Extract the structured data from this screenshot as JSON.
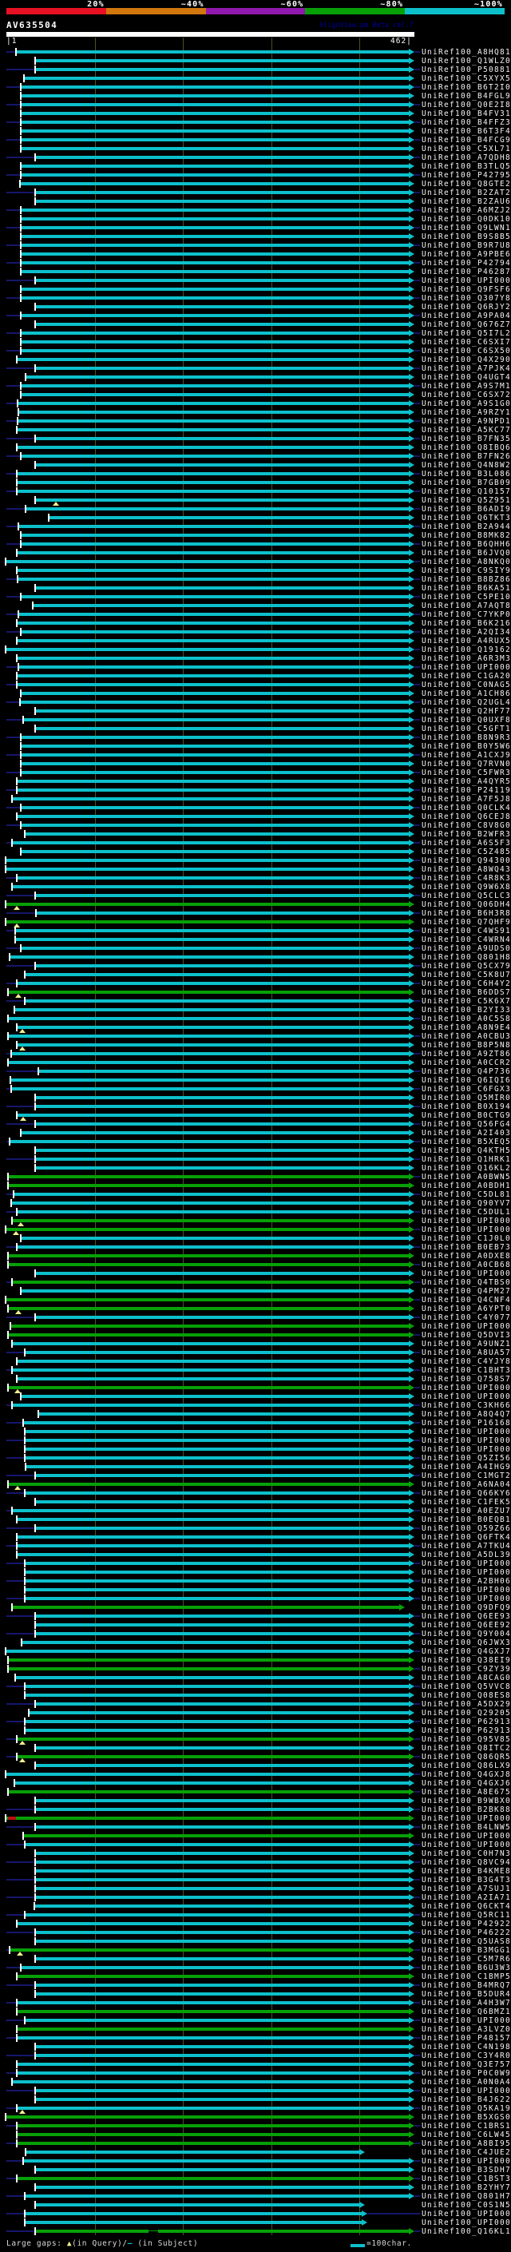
{
  "header": {
    "query_id": "AV635504",
    "app_title": "AlignView.pm Beta rel.7",
    "ruler": {
      "start_label": "|1",
      "end_label": "462|"
    },
    "scale": {
      "segments": [
        {
          "label": "20%",
          "color": "#e81123"
        },
        {
          "label": "~40%",
          "color": "#d1770e"
        },
        {
          "label": "~60%",
          "color": "#9119ad"
        },
        {
          "label": "~80%",
          "color": "#07a007"
        },
        {
          "label": "~100%",
          "color": "#0cc0cb"
        }
      ]
    }
  },
  "legend": {
    "prefix": "Large gaps:",
    "query_marker": "▲",
    "mid": "(in Query)/",
    "subject_marker": "–",
    "suffix": " (in Subject)",
    "scale_label": "=100char."
  },
  "colors": {
    "cyan_bar": "#0cc0cb",
    "green_bar": "#07a007",
    "navy_line": "#16166b",
    "gridline": "#50501e",
    "gap_marker": "#f2ee8d",
    "red_segment": "#bb1111"
  },
  "row_label_prefix": "UniRef100_",
  "rows": [
    {
      "id": "A8HQ81",
      "s": 21
    },
    {
      "id": "Q1WLZ0",
      "s": 45
    },
    {
      "id": "P50881",
      "s": 45
    },
    {
      "id": "C5XYX5",
      "s": 31
    },
    {
      "id": "B6T2I0",
      "s": 27
    },
    {
      "id": "B4FGL9",
      "s": 27
    },
    {
      "id": "Q0E2I8",
      "s": 27
    },
    {
      "id": "B4FV31",
      "s": 27
    },
    {
      "id": "B4FFZ3",
      "s": 27
    },
    {
      "id": "B6T3F4",
      "s": 27
    },
    {
      "id": "B4FCG9",
      "s": 27
    },
    {
      "id": "C5XL71",
      "s": 27
    },
    {
      "id": "A7QDH8",
      "s": 45
    },
    {
      "id": "B3TLQ5",
      "s": 27
    },
    {
      "id": "P42795",
      "s": 27
    },
    {
      "id": "Q8GTE2",
      "s": 26
    },
    {
      "id": "B2ZAT2",
      "s": 45
    },
    {
      "id": "B2ZAU6",
      "s": 45
    },
    {
      "id": "A6MZJ2",
      "s": 27
    },
    {
      "id": "Q0DK10",
      "s": 27
    },
    {
      "id": "Q9LWN1",
      "s": 27
    },
    {
      "id": "B9S8B5",
      "s": 27
    },
    {
      "id": "B9R7U8",
      "s": 27
    },
    {
      "id": "A9PBE6",
      "s": 27
    },
    {
      "id": "P42794",
      "s": 27
    },
    {
      "id": "P46287",
      "s": 27
    },
    {
      "id": "UPI000..",
      "s": 45
    },
    {
      "id": "Q9FSF6",
      "s": 27
    },
    {
      "id": "Q307Y8",
      "s": 27
    },
    {
      "id": "Q6RJY2",
      "s": 45
    },
    {
      "id": "A9PA04",
      "s": 27
    },
    {
      "id": "Q676Z7",
      "s": 45
    },
    {
      "id": "Q5I7L2",
      "s": 27
    },
    {
      "id": "C6SXI7",
      "s": 27
    },
    {
      "id": "C6SX50",
      "s": 27
    },
    {
      "id": "Q4X290",
      "s": 22
    },
    {
      "id": "A7PJK4",
      "s": 45
    },
    {
      "id": "Q4UGT4",
      "s": 33
    },
    {
      "id": "A9S7M1",
      "s": 27
    },
    {
      "id": "C6SX72",
      "s": 27
    },
    {
      "id": "A9S1G0",
      "s": 23
    },
    {
      "id": "A9RZY1",
      "s": 24
    },
    {
      "id": "A9NPD1",
      "s": 23
    },
    {
      "id": "A5KC77",
      "s": 22
    },
    {
      "id": "B7FN35",
      "s": 45
    },
    {
      "id": "Q8IBQ6",
      "s": 22
    },
    {
      "id": "B7FN26",
      "s": 27
    },
    {
      "id": "Q4N8W2",
      "s": 45
    },
    {
      "id": "B3L086",
      "s": 22
    },
    {
      "id": "B7GB09",
      "s": 22
    },
    {
      "id": "Q10157",
      "s": 22
    },
    {
      "id": "Q5Z951",
      "s": 45,
      "g": 70
    },
    {
      "id": "B6ADI9",
      "s": 33
    },
    {
      "id": "Q6TKT3",
      "s": 62
    },
    {
      "id": "B2A944",
      "s": 24
    },
    {
      "id": "B8MK82",
      "s": 27
    },
    {
      "id": "B6QHH6",
      "s": 27
    },
    {
      "id": "B6JVQ0",
      "s": 22
    },
    {
      "id": "A8NKQ0",
      "s": 8
    },
    {
      "id": "C9SIY9",
      "s": 22
    },
    {
      "id": "B8BZ86",
      "s": 23
    },
    {
      "id": "B6KA51",
      "s": 45
    },
    {
      "id": "C5PE10",
      "s": 27
    },
    {
      "id": "A7AQT8",
      "s": 42
    },
    {
      "id": "C7YKP0",
      "s": 24
    },
    {
      "id": "B6K216",
      "s": 22
    },
    {
      "id": "A2QI34",
      "s": 27
    },
    {
      "id": "A4RUX5",
      "s": 22
    },
    {
      "id": "Q19162",
      "s": 8
    },
    {
      "id": "A6R3M3",
      "s": 22
    },
    {
      "id": "UPI000..",
      "s": 24
    },
    {
      "id": "C1GA20",
      "s": 22
    },
    {
      "id": "C0NAG5",
      "s": 22
    },
    {
      "id": "A1CH86",
      "s": 27
    },
    {
      "id": "Q2UGL4",
      "s": 26
    },
    {
      "id": "Q2HF77",
      "s": 45
    },
    {
      "id": "Q0UXF8",
      "s": 30
    },
    {
      "id": "C5GFT1",
      "s": 45
    },
    {
      "id": "B8N9R3",
      "s": 27
    },
    {
      "id": "B0Y5W6",
      "s": 27
    },
    {
      "id": "A1CXJ9",
      "s": 27
    },
    {
      "id": "Q7RVN0",
      "s": 27
    },
    {
      "id": "C5FWR3",
      "s": 27
    },
    {
      "id": "A4QYR5",
      "s": 22
    },
    {
      "id": "P24119",
      "s": 22
    },
    {
      "id": "A7F5J8",
      "s": 16
    },
    {
      "id": "Q0CLK4",
      "s": 27
    },
    {
      "id": "Q6CEJ8",
      "s": 22
    },
    {
      "id": "C8V8G0",
      "s": 27
    },
    {
      "id": "B2WFR3",
      "s": 32
    },
    {
      "id": "A6S5F3",
      "s": 16
    },
    {
      "id": "C5Z485",
      "s": 27
    },
    {
      "id": "Q94300",
      "s": 8
    },
    {
      "id": "A8WQ43",
      "s": 8
    },
    {
      "id": "C4R8K3",
      "s": 22
    },
    {
      "id": "Q9W6X8",
      "s": 16
    },
    {
      "id": "Q5CLC3",
      "s": 45
    },
    {
      "id": "Q06DH4",
      "s": 8,
      "c": 1,
      "g": 21
    },
    {
      "id": "B6H3R8",
      "s": 46
    },
    {
      "id": "Q7QHF9",
      "s": 8,
      "c": 1,
      "g": 21
    },
    {
      "id": "C4WS91",
      "s": 20
    },
    {
      "id": "C4WRN4",
      "s": 20
    },
    {
      "id": "A9UDS0",
      "s": 27
    },
    {
      "id": "Q801H8",
      "s": 13
    },
    {
      "id": "Q5CX79",
      "s": 45
    },
    {
      "id": "C5K8U7",
      "s": 32
    },
    {
      "id": "C6H4Y2",
      "s": 22
    },
    {
      "id": "B6DDS7",
      "s": 11,
      "c": 1,
      "g": 23
    },
    {
      "id": "C5K6X7",
      "s": 32
    },
    {
      "id": "B2YI33",
      "s": 19
    },
    {
      "id": "A0C5S8",
      "s": 11
    },
    {
      "id": "A8N9E4",
      "s": 22,
      "g": 28
    },
    {
      "id": "A0CBU3",
      "s": 11
    },
    {
      "id": "B8P5N8",
      "s": 22,
      "g": 28
    },
    {
      "id": "A9ZT86",
      "s": 15
    },
    {
      "id": "A0CCR2",
      "s": 11
    },
    {
      "id": "Q4P736",
      "s": 49
    },
    {
      "id": "Q6IQI6",
      "s": 14
    },
    {
      "id": "C6FGX3",
      "s": 15
    },
    {
      "id": "Q5MIR0",
      "s": 45
    },
    {
      "id": "B0X194",
      "s": 45
    },
    {
      "id": "B0CTG9",
      "s": 22,
      "g": 29
    },
    {
      "id": "Q56FG4",
      "s": 45
    },
    {
      "id": "A2I403",
      "s": 27
    },
    {
      "id": "B5XEQ5",
      "s": 13
    },
    {
      "id": "Q4KTH5",
      "s": 45
    },
    {
      "id": "Q1HRK1",
      "s": 45
    },
    {
      "id": "Q16KL2",
      "s": 45
    },
    {
      "id": "A0BWN5",
      "s": 11,
      "c": 1
    },
    {
      "id": "A0BDH1",
      "s": 11,
      "c": 1
    },
    {
      "id": "C5DL81",
      "s": 18
    },
    {
      "id": "Q90YV7",
      "s": 15
    },
    {
      "id": "C5DUL1",
      "s": 22
    },
    {
      "id": "UPI000..",
      "s": 16,
      "c": 1,
      "g": 26
    },
    {
      "id": "UPI000..",
      "s": 8,
      "c": 1,
      "g": 20
    },
    {
      "id": "C1J0L0",
      "s": 27
    },
    {
      "id": "B0EB73",
      "s": 22
    },
    {
      "id": "A0DXE8",
      "s": 11,
      "c": 1
    },
    {
      "id": "A0CB68",
      "s": 11,
      "c": 1
    },
    {
      "id": "UPI000..",
      "s": 45
    },
    {
      "id": "Q4TBS0",
      "s": 16,
      "c": 1
    },
    {
      "id": "Q4PM27",
      "s": 27
    },
    {
      "id": "Q4CNF4",
      "s": 8,
      "c": 1
    },
    {
      "id": "A6YPT0",
      "s": 11,
      "c": 1,
      "g": 23
    },
    {
      "id": "C4Y077",
      "s": 45
    },
    {
      "id": "UPI000..",
      "s": 14,
      "c": 1
    },
    {
      "id": "Q5DVI3",
      "s": 11,
      "c": 1
    },
    {
      "id": "A9UNZ1",
      "s": 16
    },
    {
      "id": "A8UA57",
      "s": 32
    },
    {
      "id": "C4YJY8",
      "s": 22
    },
    {
      "id": "C1BHT3",
      "s": 16
    },
    {
      "id": "Q758S7",
      "s": 22
    },
    {
      "id": "UPI000..",
      "s": 11,
      "c": 1,
      "g": 22
    },
    {
      "id": "UPI000..",
      "s": 27
    },
    {
      "id": "C3KH66",
      "s": 16
    },
    {
      "id": "A8Q4Q7",
      "s": 49
    },
    {
      "id": "P16168",
      "s": 30
    },
    {
      "id": "UPI000..",
      "s": 32
    },
    {
      "id": "UPI000..",
      "s": 32
    },
    {
      "id": "UPI000..",
      "s": 32
    },
    {
      "id": "Q5ZI56",
      "s": 32
    },
    {
      "id": "A4IHG9",
      "s": 33
    },
    {
      "id": "C1MGT2",
      "s": 45
    },
    {
      "id": "A6NA04",
      "s": 11,
      "c": 1,
      "g": 22
    },
    {
      "id": "Q66KY6",
      "s": 32
    },
    {
      "id": "C1FEK5",
      "s": 45
    },
    {
      "id": "A0EZU7",
      "s": 16
    },
    {
      "id": "B0EQB1",
      "s": 22
    },
    {
      "id": "Q59Z66",
      "s": 45
    },
    {
      "id": "Q6FTK4",
      "s": 22
    },
    {
      "id": "A7TKU4",
      "s": 22
    },
    {
      "id": "A5DL39",
      "s": 22
    },
    {
      "id": "UPI000..",
      "s": 32
    },
    {
      "id": "UPI000..",
      "s": 32
    },
    {
      "id": "A2BH06",
      "s": 32
    },
    {
      "id": "UPI000..",
      "s": 32
    },
    {
      "id": "UPI000..",
      "s": 32
    },
    {
      "id": "Q9DFQ9",
      "s": 16,
      "c": 1,
      "e": 500
    },
    {
      "id": "Q6EE93",
      "s": 45
    },
    {
      "id": "Q6EE92",
      "s": 45
    },
    {
      "id": "Q9Y004",
      "s": 45
    },
    {
      "id": "Q6JWX3",
      "s": 28
    },
    {
      "id": "Q4GXJ7",
      "s": 8
    },
    {
      "id": "Q38EI9",
      "s": 11,
      "c": 1
    },
    {
      "id": "C9ZY39",
      "s": 11,
      "c": 1
    },
    {
      "id": "A8CAG0",
      "s": 20
    },
    {
      "id": "Q5VVC8",
      "s": 32
    },
    {
      "id": "Q08ES8",
      "s": 32
    },
    {
      "id": "A5DX29",
      "s": 45
    },
    {
      "id": "Q29205",
      "s": 37
    },
    {
      "id": "P62913-2",
      "s": 32
    },
    {
      "id": "P62913",
      "s": 32
    },
    {
      "id": "Q95V85",
      "s": 22,
      "c": 1,
      "g": 28
    },
    {
      "id": "Q8ITC2",
      "s": 45
    },
    {
      "id": "Q86QR5",
      "s": 22,
      "c": 1,
      "g": 28
    },
    {
      "id": "Q86LX9",
      "s": 45
    },
    {
      "id": "Q4GXJ8",
      "s": 8
    },
    {
      "id": "Q4GXJ6",
      "s": 19
    },
    {
      "id": "A8E675",
      "s": 11,
      "c": 1
    },
    {
      "id": "B9WBX0",
      "s": 45
    },
    {
      "id": "B2BK88",
      "s": 45
    },
    {
      "id": "UPI000..",
      "s": 8,
      "c": 1,
      "r": [
        10,
        20
      ]
    },
    {
      "id": "B4LNW5",
      "s": 45
    },
    {
      "id": "UPI000..",
      "s": 30,
      "c": 1
    },
    {
      "id": "UPI000..",
      "s": 32
    },
    {
      "id": "C0H7N3",
      "s": 45
    },
    {
      "id": "Q8VC94",
      "s": 45
    },
    {
      "id": "B4KME8",
      "s": 45
    },
    {
      "id": "B3G4T3",
      "s": 45
    },
    {
      "id": "A7SUJ1",
      "s": 45
    },
    {
      "id": "A2IA71",
      "s": 45
    },
    {
      "id": "Q6CKT4",
      "s": 44
    },
    {
      "id": "Q5RC11",
      "s": 32
    },
    {
      "id": "P42922",
      "s": 22
    },
    {
      "id": "P46222",
      "s": 45
    },
    {
      "id": "Q5UAS8",
      "s": 45
    },
    {
      "id": "B3MGG1",
      "s": 13,
      "c": 1,
      "g": 25
    },
    {
      "id": "C5M7R6",
      "s": 45
    },
    {
      "id": "B6U3W3",
      "s": 27
    },
    {
      "id": "C1BMP5",
      "s": 22,
      "c": 1
    },
    {
      "id": "B4MRQ7",
      "s": 45
    },
    {
      "id": "B5DUR4",
      "s": 45
    },
    {
      "id": "A4H3W7",
      "s": 22
    },
    {
      "id": "Q6BMZ1",
      "s": 22,
      "c": 1
    },
    {
      "id": "UPI000..",
      "s": 32
    },
    {
      "id": "A3LVZ0",
      "s": 22,
      "c": 1
    },
    {
      "id": "P48157",
      "s": 22
    },
    {
      "id": "C4N198",
      "s": 45
    },
    {
      "id": "C3Y4R0",
      "s": 45
    },
    {
      "id": "Q3E757",
      "s": 22
    },
    {
      "id": "P0C0W9",
      "s": 22
    },
    {
      "id": "A0N0A4",
      "s": 16
    },
    {
      "id": "UPI000..",
      "s": 45
    },
    {
      "id": "B4J622",
      "s": 45
    },
    {
      "id": "Q5KA19",
      "s": 22,
      "g": 28
    },
    {
      "id": "B5XGS0",
      "s": 8,
      "c": 1
    },
    {
      "id": "C1BRS1",
      "s": 22,
      "c": 1
    },
    {
      "id": "C6LW45",
      "s": 22,
      "c": 1
    },
    {
      "id": "A8BI95",
      "s": 22,
      "c": 1
    },
    {
      "id": "C4JUE2",
      "s": 33,
      "e": 450
    },
    {
      "id": "UPI000..",
      "s": 30
    },
    {
      "id": "B3SDH7",
      "s": 45
    },
    {
      "id": "C1BST3",
      "s": 22,
      "c": 1
    },
    {
      "id": "B2YHY7",
      "s": 45
    },
    {
      "id": "Q801H7",
      "s": 32
    },
    {
      "id": "C0S1N5",
      "s": 45,
      "e": 450
    },
    {
      "id": "UPI000..",
      "s": 32,
      "e": 453
    },
    {
      "id": "UPI000..",
      "s": 32,
      "e": 453
    },
    {
      "id": "Q16KL1",
      "s": 45,
      "c": 1,
      "nt": [
        186,
        198
      ]
    }
  ]
}
